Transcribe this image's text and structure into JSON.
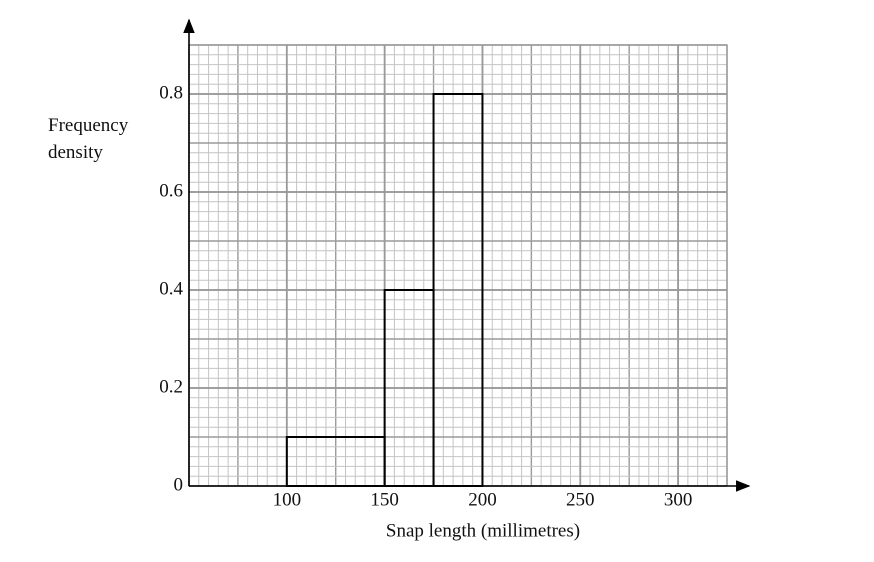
{
  "chart_data": {
    "type": "histogram",
    "x_label": "Snap length (millimetres)",
    "y_label": "Frequency density",
    "bins": [
      100,
      150,
      175,
      200
    ],
    "values": [
      0.1,
      0.4,
      0.8
    ],
    "color": "#000000",
    "xlim": [
      50,
      325
    ],
    "xticks": [
      100,
      150,
      200,
      250,
      300
    ],
    "ylim": [
      0,
      0.9
    ],
    "yticks": [
      0,
      0.2,
      0.4,
      0.6,
      0.8
    ],
    "grid": true
  }
}
